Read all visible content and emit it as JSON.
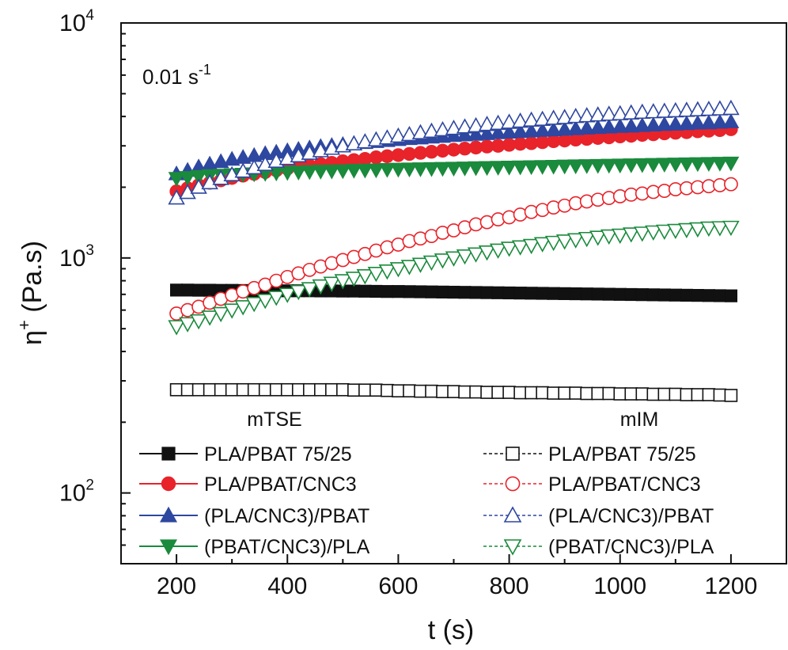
{
  "chart_data": {
    "type": "scatter",
    "title": "",
    "xlabel": "t (s)",
    "ylabel_symbol": "η",
    "ylabel_sup": "+",
    "ylabel_unit": " (Pa.s)",
    "xlim": [
      100,
      1300
    ],
    "ylim": [
      50,
      10000
    ],
    "yscale": "log",
    "x_ticks": [
      200,
      400,
      600,
      800,
      1000,
      1200
    ],
    "x_tick_labels": [
      "200",
      "400",
      "600",
      "800",
      "1000",
      "1200"
    ],
    "y_ticks": [
      {
        "base": "10",
        "exp": "2",
        "value": 100
      },
      {
        "base": "10",
        "exp": "3",
        "value": 1000
      },
      {
        "base": "10",
        "exp": "4",
        "value": 10000
      }
    ],
    "annotation": {
      "text": "0.01 s",
      "sup": "-1"
    },
    "legend": {
      "groups": [
        {
          "title": "mTSE",
          "entries": [
            "PLA/PBAT 75/25",
            "PLA/PBAT/CNC3",
            "(PLA/CNC3)/PBAT",
            "(PBAT/CNC3)/PLA"
          ]
        },
        {
          "title": "mIM",
          "entries": [
            "PLA/PBAT 75/25",
            "PLA/PBAT/CNC3",
            "(PLA/CNC3)/PBAT",
            "(PBAT/CNC3)/PLA"
          ]
        }
      ]
    },
    "x": [
      200,
      220,
      240,
      260,
      280,
      300,
      320,
      340,
      360,
      380,
      400,
      420,
      440,
      460,
      480,
      500,
      520,
      540,
      560,
      580,
      600,
      620,
      640,
      660,
      680,
      700,
      720,
      740,
      760,
      780,
      800,
      820,
      840,
      860,
      880,
      900,
      920,
      940,
      960,
      980,
      1000,
      1020,
      1040,
      1060,
      1080,
      1100,
      1120,
      1140,
      1160,
      1180,
      1200
    ],
    "series": [
      {
        "name": "PLA/PBAT 75/25",
        "group": "mTSE",
        "marker": "square",
        "filled": true,
        "color": "#111111",
        "values": [
          730,
          730,
          729,
          729,
          728,
          728,
          727,
          727,
          726,
          726,
          725,
          725,
          725,
          724,
          724,
          723,
          723,
          722,
          721,
          720,
          720,
          719,
          718,
          717,
          716,
          715,
          714,
          713,
          712,
          711,
          710,
          709,
          708,
          707,
          706,
          705,
          704,
          703,
          702,
          701,
          700,
          699,
          698,
          697,
          696,
          695,
          694,
          693,
          692,
          691,
          690
        ]
      },
      {
        "name": "PLA/PBAT/CNC3",
        "group": "mTSE",
        "marker": "circle",
        "filled": true,
        "color": "#e8232a",
        "values": [
          1920,
          1980,
          2040,
          2090,
          2140,
          2190,
          2240,
          2280,
          2320,
          2360,
          2400,
          2440,
          2470,
          2510,
          2540,
          2580,
          2610,
          2640,
          2680,
          2710,
          2740,
          2770,
          2800,
          2830,
          2860,
          2890,
          2920,
          2950,
          2980,
          3000,
          3030,
          3060,
          3080,
          3110,
          3140,
          3160,
          3190,
          3210,
          3240,
          3260,
          3290,
          3310,
          3340,
          3360,
          3390,
          3410,
          3430,
          3460,
          3480,
          3500,
          3530
        ]
      },
      {
        "name": "(PLA/CNC3)/PBAT",
        "group": "mTSE",
        "marker": "triangle-up",
        "filled": true,
        "color": "#2e47a0",
        "values": [
          2280,
          2360,
          2440,
          2510,
          2570,
          2630,
          2680,
          2730,
          2780,
          2820,
          2860,
          2900,
          2940,
          2980,
          3010,
          3040,
          3070,
          3100,
          3130,
          3160,
          3190,
          3220,
          3240,
          3270,
          3290,
          3320,
          3340,
          3360,
          3380,
          3410,
          3430,
          3450,
          3470,
          3490,
          3510,
          3530,
          3550,
          3570,
          3590,
          3610,
          3630,
          3640,
          3660,
          3680,
          3700,
          3710,
          3730,
          3750,
          3760,
          3780,
          3800
        ]
      },
      {
        "name": "(PBAT/CNC3)/PLA",
        "group": "mTSE",
        "marker": "triangle-down",
        "filled": true,
        "color": "#1a8a3c",
        "values": [
          2180,
          2200,
          2220,
          2240,
          2250,
          2260,
          2270,
          2280,
          2290,
          2300,
          2310,
          2320,
          2330,
          2340,
          2345,
          2350,
          2360,
          2365,
          2370,
          2380,
          2385,
          2390,
          2395,
          2400,
          2405,
          2410,
          2415,
          2420,
          2425,
          2430,
          2435,
          2440,
          2445,
          2450,
          2455,
          2460,
          2465,
          2470,
          2475,
          2480,
          2485,
          2490,
          2495,
          2500,
          2505,
          2510,
          2515,
          2520,
          2525,
          2530,
          2535
        ]
      },
      {
        "name": "PLA/PBAT 75/25",
        "group": "mIM",
        "marker": "square",
        "filled": false,
        "color": "#111111",
        "values": [
          275,
          275,
          275,
          275,
          275,
          275,
          275,
          275,
          275,
          275,
          275,
          275,
          275,
          275,
          275,
          275,
          274,
          274,
          274,
          273,
          272,
          272,
          271,
          271,
          270,
          270,
          269,
          269,
          268,
          268,
          268,
          267,
          267,
          267,
          266,
          266,
          266,
          265,
          265,
          265,
          264,
          264,
          264,
          263,
          263,
          263,
          262,
          262,
          262,
          261,
          260
        ]
      },
      {
        "name": "PLA/PBAT/CNC3",
        "group": "mIM",
        "marker": "circle",
        "filled": false,
        "color": "#e8232a",
        "values": [
          580,
          600,
          620,
          645,
          670,
          695,
          720,
          745,
          770,
          800,
          830,
          860,
          890,
          920,
          950,
          980,
          1010,
          1040,
          1075,
          1110,
          1140,
          1180,
          1210,
          1240,
          1280,
          1310,
          1350,
          1390,
          1420,
          1460,
          1490,
          1530,
          1570,
          1600,
          1640,
          1670,
          1710,
          1740,
          1770,
          1800,
          1830,
          1860,
          1880,
          1910,
          1930,
          1960,
          1980,
          2000,
          2020,
          2040,
          2060
        ]
      },
      {
        "name": "(PLA/CNC3)/PBAT",
        "group": "mIM",
        "marker": "triangle-up",
        "filled": false,
        "color": "#2e47a0",
        "values": [
          1800,
          1900,
          2000,
          2090,
          2180,
          2260,
          2340,
          2420,
          2500,
          2580,
          2650,
          2720,
          2790,
          2860,
          2930,
          3000,
          3060,
          3120,
          3180,
          3240,
          3300,
          3350,
          3410,
          3460,
          3510,
          3560,
          3610,
          3650,
          3700,
          3740,
          3780,
          3820,
          3860,
          3890,
          3930,
          3960,
          4000,
          4030,
          4060,
          4090,
          4110,
          4140,
          4170,
          4190,
          4210,
          4230,
          4250,
          4270,
          4290,
          4310,
          4330
        ]
      },
      {
        "name": "(PBAT/CNC3)/PLA",
        "group": "mIM",
        "marker": "triangle-down",
        "filled": false,
        "color": "#1a8a3c",
        "values": [
          510,
          525,
          540,
          560,
          580,
          600,
          620,
          640,
          660,
          680,
          700,
          720,
          740,
          760,
          780,
          800,
          820,
          840,
          860,
          880,
          900,
          920,
          940,
          960,
          980,
          1000,
          1020,
          1040,
          1060,
          1080,
          1100,
          1115,
          1130,
          1150,
          1165,
          1180,
          1195,
          1210,
          1225,
          1240,
          1250,
          1265,
          1275,
          1290,
          1300,
          1310,
          1320,
          1330,
          1340,
          1345,
          1350
        ]
      }
    ]
  }
}
